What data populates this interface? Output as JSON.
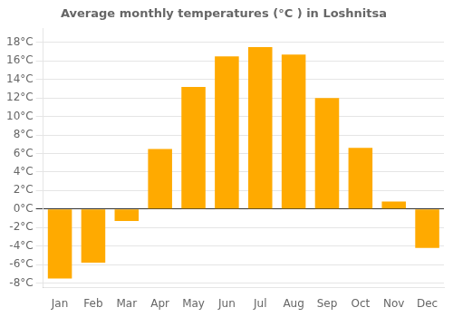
{
  "chart_data": {
    "type": "bar",
    "title": "Average monthly temperatures (°C ) in Loshnitsa",
    "categories": [
      "Jan",
      "Feb",
      "Mar",
      "Apr",
      "May",
      "Jun",
      "Jul",
      "Aug",
      "Sep",
      "Oct",
      "Nov",
      "Dec"
    ],
    "values": [
      -7.5,
      -5.8,
      -1.3,
      6.5,
      13.2,
      16.5,
      17.5,
      16.7,
      12.0,
      6.6,
      0.8,
      -4.2
    ],
    "color": "#FFAA00",
    "ylim": [
      -8.5,
      19.5
    ],
    "yticks": [
      {
        "value": -8,
        "label": "-8°C"
      },
      {
        "value": -6,
        "label": "-6°C"
      },
      {
        "value": -4,
        "label": "-4°C"
      },
      {
        "value": -2,
        "label": "-2°C"
      },
      {
        "value": 0,
        "label": "0°C"
      },
      {
        "value": 2,
        "label": "2°C"
      },
      {
        "value": 4,
        "label": "4°C"
      },
      {
        "value": 6,
        "label": "6°C"
      },
      {
        "value": 8,
        "label": "8°C"
      },
      {
        "value": 10,
        "label": "10°C"
      },
      {
        "value": 12,
        "label": "12°C"
      },
      {
        "value": 14,
        "label": "14°C"
      },
      {
        "value": 16,
        "label": "16°C"
      },
      {
        "value": 18,
        "label": "18°C"
      }
    ],
    "grid": true
  }
}
